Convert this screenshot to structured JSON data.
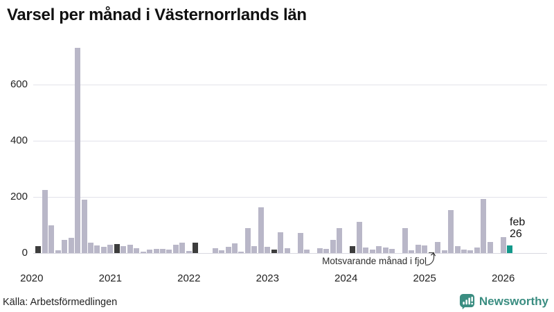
{
  "title": "Varsel per månad i Västernorrlands län",
  "footer": {
    "source": "Källa: Arbetsförmedlingen",
    "brand": "Newsworthy"
  },
  "colors": {
    "bar": "#b9b7c8",
    "bar_dark": "#3d3d3d",
    "bar_highlight": "#13998b",
    "brand_teal": "#3a8d81",
    "gridline": "#e2e2ea",
    "text": "#222222"
  },
  "chart_data": {
    "type": "bar",
    "title": "Varsel per månad i Västernorrlands län",
    "xlabel": "",
    "ylabel": "",
    "ylim": [
      0,
      750
    ],
    "yticks": [
      0,
      200,
      400,
      600
    ],
    "grid": true,
    "legend": "none",
    "x_range": "2020-01 to 2026-02, one bar per month",
    "series": [
      {
        "year": "2020",
        "monthly_values": [
          0,
          25,
          225,
          100,
          10,
          47,
          55,
          730,
          190,
          38,
          28,
          23
        ]
      },
      {
        "year": "2021",
        "monthly_values": [
          30,
          33,
          25,
          30,
          18,
          5,
          12,
          15,
          14,
          13,
          30,
          36
        ]
      },
      {
        "year": "2022",
        "monthly_values": [
          7,
          38,
          0,
          0,
          18,
          10,
          23,
          35,
          5,
          88,
          24,
          162
        ]
      },
      {
        "year": "2023",
        "monthly_values": [
          23,
          13,
          75,
          18,
          0,
          71,
          12,
          0,
          18,
          14,
          48,
          90
        ]
      },
      {
        "year": "2024",
        "monthly_values": [
          0,
          24,
          112,
          20,
          12,
          24,
          21,
          16,
          0,
          88,
          10,
          30
        ]
      },
      {
        "year": "2025",
        "monthly_values": [
          27,
          3,
          40,
          11,
          152,
          24,
          12,
          10,
          20,
          193,
          40,
          0
        ]
      },
      {
        "year": "2026",
        "monthly_values": [
          57,
          28
        ]
      }
    ],
    "dark_bar_months": [
      "2020-02",
      "2021-02",
      "2022-02",
      "2023-02",
      "2024-02",
      "2025-02"
    ],
    "highlight_bar_month": "2026-02",
    "highlight": {
      "label_lines": [
        "feb",
        "26"
      ]
    },
    "annotation": {
      "text": "Motsvarande månad i fjol",
      "points_to": "2025-02"
    }
  }
}
